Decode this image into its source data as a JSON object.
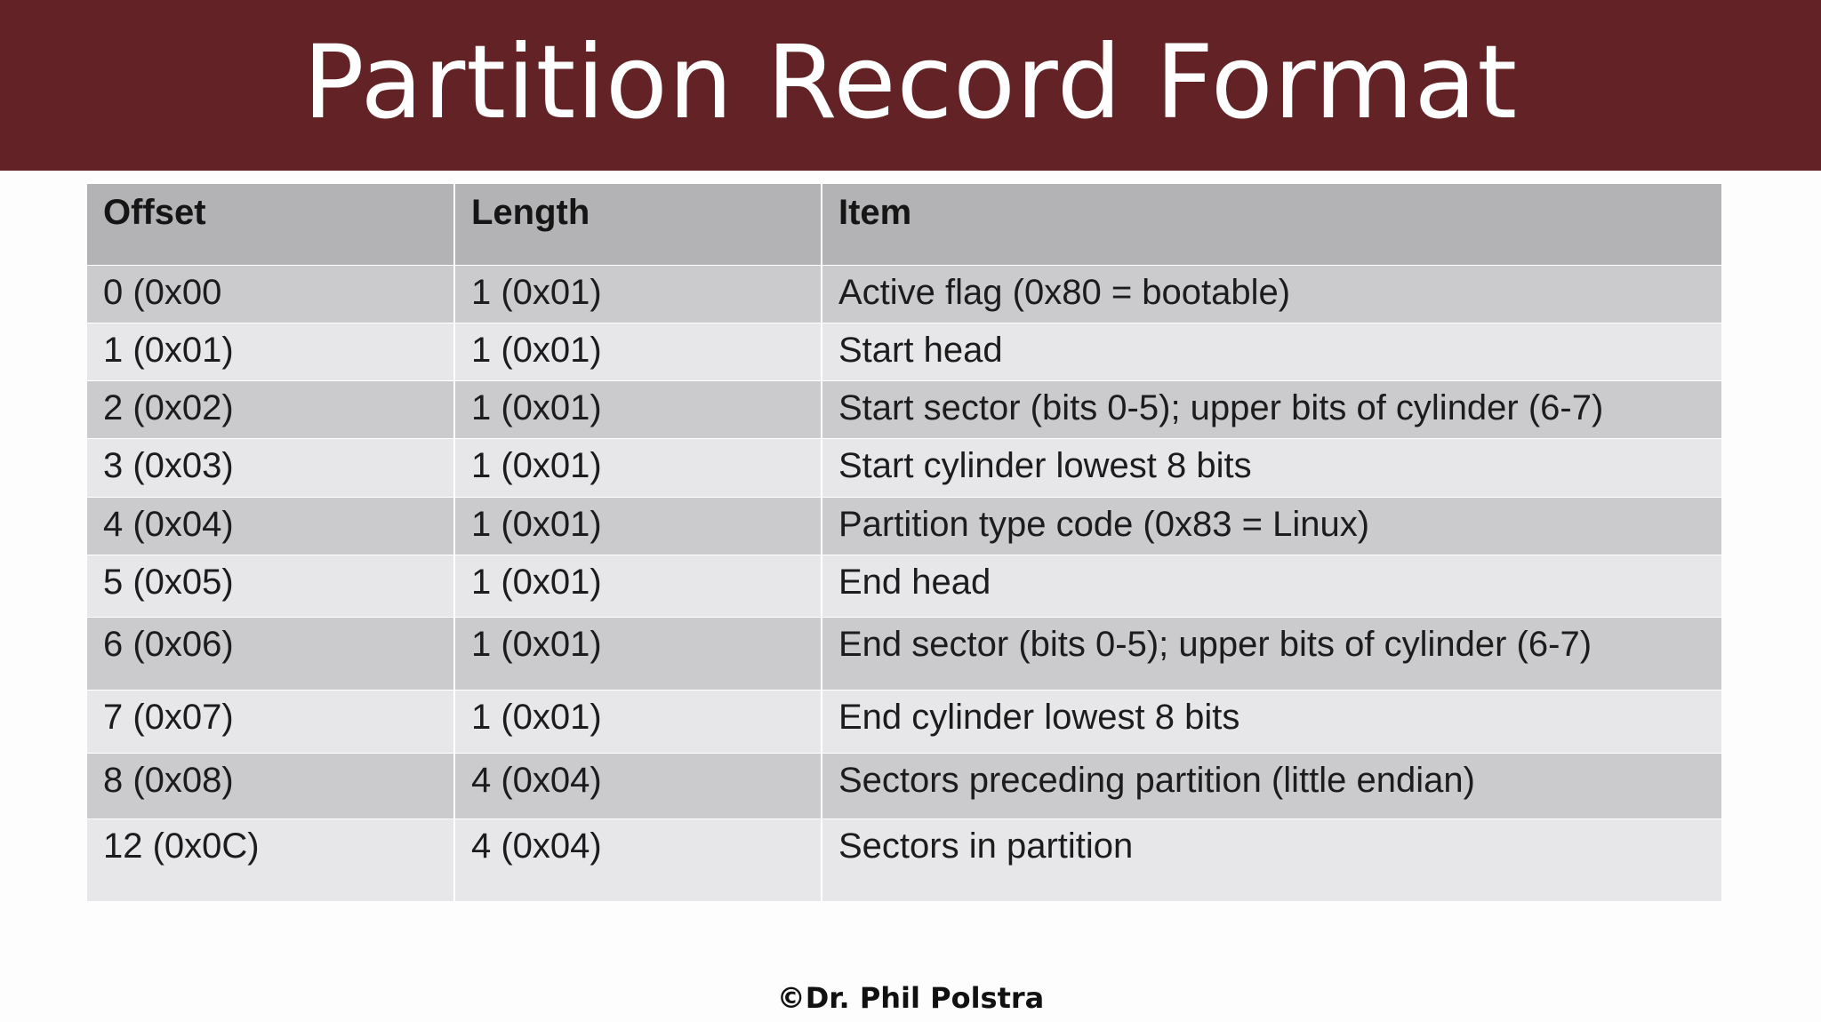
{
  "slide": {
    "title": "Partition Record Format",
    "footer": "©Dr. Phil Polstra"
  },
  "table": {
    "headers": [
      "Offset",
      "Length",
      "Item"
    ],
    "rows": [
      [
        "0 (0x00",
        "1 (0x01)",
        "Active flag (0x80 = bootable)"
      ],
      [
        "1 (0x01)",
        "1 (0x01)",
        "Start head"
      ],
      [
        "2 (0x02)",
        "1 (0x01)",
        "Start sector (bits 0-5); upper bits of cylinder (6-7)"
      ],
      [
        "3 (0x03)",
        "1 (0x01)",
        "Start cylinder lowest 8 bits"
      ],
      [
        "4 (0x04)",
        "1 (0x01)",
        "Partition type code (0x83 = Linux)"
      ],
      [
        "5 (0x05)",
        "1 (0x01)",
        "End head"
      ],
      [
        "6 (0x06)",
        "1 (0x01)",
        "End sector (bits 0-5); upper bits of cylinder (6-7)"
      ],
      [
        "7 (0x07)",
        "1 (0x01)",
        "End cylinder lowest 8 bits"
      ],
      [
        "8 (0x08)",
        "4 (0x04)",
        "Sectors preceding partition (little endian)"
      ],
      [
        "12 (0x0C)",
        "4 (0x04)",
        "Sectors in partition"
      ]
    ]
  },
  "colors": {
    "title_bar": "#632326",
    "header_row": "#b3b2b4",
    "row_dark": "#cbcacd",
    "row_light": "#e7e6e8"
  }
}
